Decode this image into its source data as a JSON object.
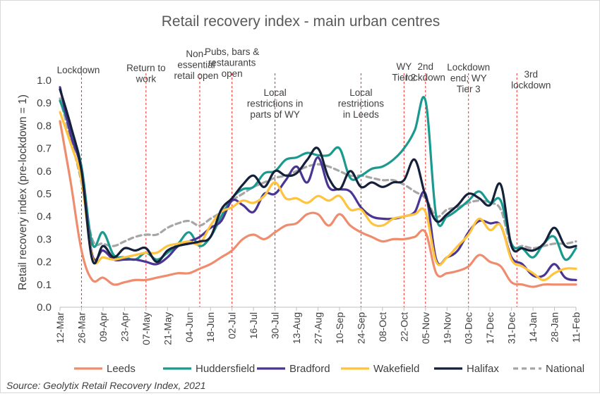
{
  "chart_data": {
    "type": "line",
    "title": "Retail recovery index - main urban centres",
    "ylabel": "Retail recovery index (pre-lockdown = 1)",
    "xlabel": "",
    "source": "Source: Geolytix Retail Recovery Index, 2021",
    "ylim": [
      0,
      1
    ],
    "yticks": [
      "0.0",
      "0.1",
      "0.2",
      "0.3",
      "0.4",
      "0.5",
      "0.6",
      "0.7",
      "0.8",
      "0.9",
      "1.0"
    ],
    "grid": false,
    "legend_position": "bottom",
    "x_tick_labels": [
      "12-Mar",
      "26-Mar",
      "09-Apr",
      "23-Apr",
      "07-May",
      "21-May",
      "04-Jun",
      "18-Jun",
      "02-Jul",
      "16-Jul",
      "30-Jul",
      "13-Aug",
      "27-Aug",
      "10-Sep",
      "24-Sep",
      "08-Oct",
      "22-Oct",
      "05-Nov",
      "19-Nov",
      "03-Dec",
      "17-Dec",
      "31-Dec",
      "14-Jan",
      "28-Jan",
      "11-Feb"
    ],
    "x": [
      "12-Mar",
      "19-Mar",
      "26-Mar",
      "02-Apr",
      "09-Apr",
      "16-Apr",
      "23-Apr",
      "30-Apr",
      "07-May",
      "14-May",
      "21-May",
      "28-May",
      "04-Jun",
      "11-Jun",
      "18-Jun",
      "25-Jun",
      "02-Jul",
      "09-Jul",
      "16-Jul",
      "23-Jul",
      "30-Jul",
      "06-Aug",
      "13-Aug",
      "20-Aug",
      "27-Aug",
      "03-Sep",
      "10-Sep",
      "17-Sep",
      "24-Sep",
      "01-Oct",
      "08-Oct",
      "15-Oct",
      "22-Oct",
      "29-Oct",
      "05-Nov",
      "12-Nov",
      "19-Nov",
      "26-Nov",
      "03-Dec",
      "10-Dec",
      "17-Dec",
      "24-Dec",
      "31-Dec",
      "07-Jan",
      "14-Jan",
      "21-Jan",
      "28-Jan",
      "04-Feb",
      "11-Feb"
    ],
    "series": [
      {
        "name": "Leeds",
        "color": "#f08c6e",
        "dashed": false,
        "values": [
          0.82,
          0.55,
          0.25,
          0.12,
          0.13,
          0.1,
          0.11,
          0.12,
          0.12,
          0.13,
          0.14,
          0.15,
          0.15,
          0.17,
          0.19,
          0.22,
          0.25,
          0.3,
          0.32,
          0.3,
          0.33,
          0.36,
          0.37,
          0.41,
          0.41,
          0.36,
          0.41,
          0.36,
          0.33,
          0.31,
          0.29,
          0.3,
          0.3,
          0.31,
          0.33,
          0.15,
          0.15,
          0.16,
          0.18,
          0.23,
          0.2,
          0.18,
          0.11,
          0.1,
          0.09,
          0.1,
          0.1,
          0.1,
          0.1
        ]
      },
      {
        "name": "Huddersfield",
        "color": "#1a9a8e",
        "dashed": false,
        "values": [
          0.91,
          0.78,
          0.62,
          0.28,
          0.33,
          0.23,
          0.22,
          0.21,
          0.24,
          0.21,
          0.24,
          0.28,
          0.33,
          0.27,
          0.31,
          0.4,
          0.48,
          0.52,
          0.53,
          0.59,
          0.6,
          0.65,
          0.66,
          0.68,
          0.67,
          0.67,
          0.7,
          0.57,
          0.58,
          0.61,
          0.62,
          0.65,
          0.7,
          0.78,
          0.91,
          0.4,
          0.4,
          0.43,
          0.47,
          0.51,
          0.46,
          0.47,
          0.28,
          0.26,
          0.22,
          0.28,
          0.31,
          0.21,
          0.26
        ]
      },
      {
        "name": "Bradford",
        "color": "#4a3594",
        "dashed": false,
        "values": [
          0.97,
          0.76,
          0.6,
          0.23,
          0.25,
          0.21,
          0.21,
          0.21,
          0.2,
          0.19,
          0.22,
          0.27,
          0.29,
          0.31,
          0.35,
          0.38,
          0.47,
          0.45,
          0.42,
          0.5,
          0.5,
          0.56,
          0.62,
          0.55,
          0.66,
          0.53,
          0.52,
          0.51,
          0.44,
          0.4,
          0.39,
          0.39,
          0.4,
          0.42,
          0.5,
          0.21,
          0.22,
          0.25,
          0.33,
          0.38,
          0.37,
          0.36,
          0.22,
          0.19,
          0.14,
          0.14,
          0.19,
          0.13,
          0.12
        ]
      },
      {
        "name": "Wakefield",
        "color": "#ffc33c",
        "dashed": false,
        "values": [
          0.86,
          0.72,
          0.56,
          0.22,
          0.22,
          0.21,
          0.22,
          0.23,
          0.24,
          0.24,
          0.27,
          0.28,
          0.29,
          0.28,
          0.36,
          0.42,
          0.44,
          0.47,
          0.46,
          0.49,
          0.55,
          0.48,
          0.48,
          0.46,
          0.49,
          0.47,
          0.49,
          0.43,
          0.43,
          0.37,
          0.36,
          0.39,
          0.4,
          0.41,
          0.42,
          0.2,
          0.22,
          0.27,
          0.32,
          0.39,
          0.34,
          0.36,
          0.21,
          0.18,
          0.15,
          0.12,
          0.15,
          0.17,
          0.17
        ]
      },
      {
        "name": "Halifax",
        "color": "#15203a",
        "dashed": false,
        "values": [
          0.96,
          0.8,
          0.6,
          0.21,
          0.27,
          0.22,
          0.26,
          0.25,
          0.26,
          0.2,
          0.25,
          0.27,
          0.28,
          0.29,
          0.31,
          0.43,
          0.48,
          0.54,
          0.58,
          0.53,
          0.6,
          0.58,
          0.59,
          0.65,
          0.7,
          0.57,
          0.52,
          0.6,
          0.53,
          0.55,
          0.53,
          0.55,
          0.56,
          0.65,
          0.49,
          0.38,
          0.41,
          0.45,
          0.5,
          0.48,
          0.45,
          0.54,
          0.27,
          0.26,
          0.25,
          0.28,
          0.35,
          0.27,
          0.27
        ]
      },
      {
        "name": "National",
        "color": "#a6a6a6",
        "dashed": true,
        "values": [
          0.92,
          0.74,
          0.55,
          0.3,
          0.28,
          0.27,
          0.29,
          0.31,
          0.32,
          0.32,
          0.35,
          0.37,
          0.38,
          0.36,
          0.39,
          0.42,
          0.47,
          0.5,
          0.53,
          0.55,
          0.57,
          0.58,
          0.6,
          0.62,
          0.63,
          0.62,
          0.6,
          0.58,
          0.58,
          0.57,
          0.56,
          0.56,
          0.54,
          0.51,
          0.48,
          0.4,
          0.43,
          0.44,
          0.46,
          0.47,
          0.46,
          0.43,
          0.27,
          0.27,
          0.26,
          0.27,
          0.28,
          0.28,
          0.29
        ]
      }
    ],
    "annotations": [
      {
        "lines": [
          "Lockdown"
        ],
        "x": "26-Mar"
      },
      {
        "lines": [
          "Return to",
          "work"
        ],
        "x": "07-May"
      },
      {
        "lines": [
          "Non-",
          "essential",
          "retail open"
        ],
        "x": "11-Jun"
      },
      {
        "lines": [
          "Pubs, bars &",
          "restaurants",
          "open"
        ],
        "x": "02-Jul"
      },
      {
        "lines": [
          "Local",
          "restrictions in",
          "parts of WY"
        ],
        "x": "30-Jul"
      },
      {
        "lines": [
          "Local",
          "restrictions",
          "in Leeds"
        ],
        "x": "24-Sep"
      },
      {
        "lines": [
          "WY",
          "Tier 2"
        ],
        "x": "22-Oct"
      },
      {
        "lines": [
          "2nd",
          "lockdown"
        ],
        "x": "05-Nov"
      },
      {
        "lines": [
          "Lockdown",
          "end; WY",
          "Tier 3"
        ],
        "x": "03-Dec"
      },
      {
        "lines": [
          "3rd",
          "lockdown"
        ],
        "x": "04-Jan"
      }
    ]
  }
}
